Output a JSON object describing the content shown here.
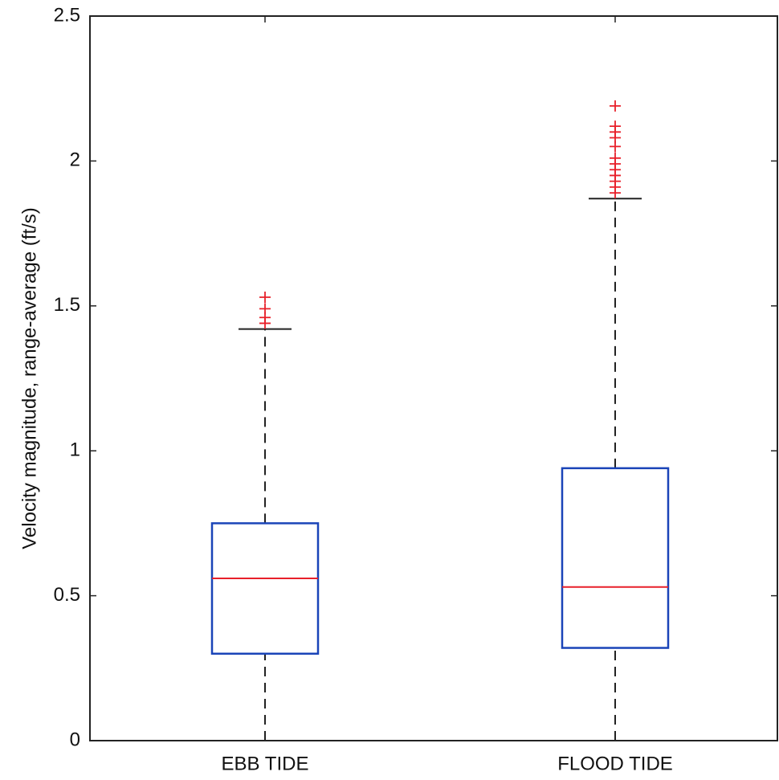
{
  "chart_data": {
    "type": "box",
    "ylabel": "Velocity magnitude, range-average (ft/s)",
    "categories": [
      "EBB TIDE",
      "FLOOD TIDE"
    ],
    "boxes": [
      {
        "whisker_low": 0,
        "q1": 0.3,
        "median": 0.56,
        "q3": 0.75,
        "whisker_high": 1.42,
        "outliers": [
          1.53,
          1.49,
          1.46,
          1.44
        ]
      },
      {
        "whisker_low": 0,
        "q1": 0.32,
        "median": 0.53,
        "q3": 0.94,
        "whisker_high": 1.87,
        "outliers": [
          2.19,
          2.12,
          2.1,
          2.08,
          2.05,
          2.01,
          1.99,
          1.97,
          1.95,
          1.93,
          1.91,
          1.89
        ]
      }
    ],
    "box_color": "#1a44b8",
    "median_color": "#e8202a",
    "outlier_color": "#e8202a",
    "whisker_color": "#222222",
    "ylim": [
      0,
      2.5
    ],
    "yticks": [
      0,
      0.5,
      1,
      1.5,
      2,
      2.5
    ]
  }
}
